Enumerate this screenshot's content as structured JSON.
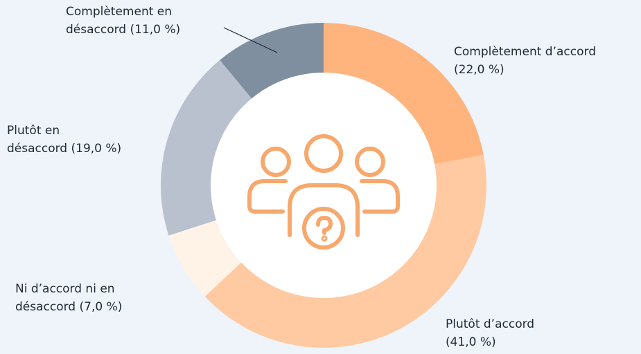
{
  "chart_data": {
    "type": "donut",
    "categories": [
      "Complètement d’accord",
      "Plutôt d’accord",
      "Ni d’accord ni en désaccord",
      "Plutôt en désaccord",
      "Complètement en désaccord"
    ],
    "values": [
      22,
      41,
      7,
      19,
      11
    ],
    "value_labels": [
      "(22,0 %)",
      "(41,0 %)",
      "(7,0 %)",
      "(19,0 %)",
      "(11,0 %)"
    ],
    "colors": [
      "#ffb47e",
      "#ffcaa2",
      "#fff2e7",
      "#b8c1cd",
      "#7f8fa0"
    ]
  }
}
